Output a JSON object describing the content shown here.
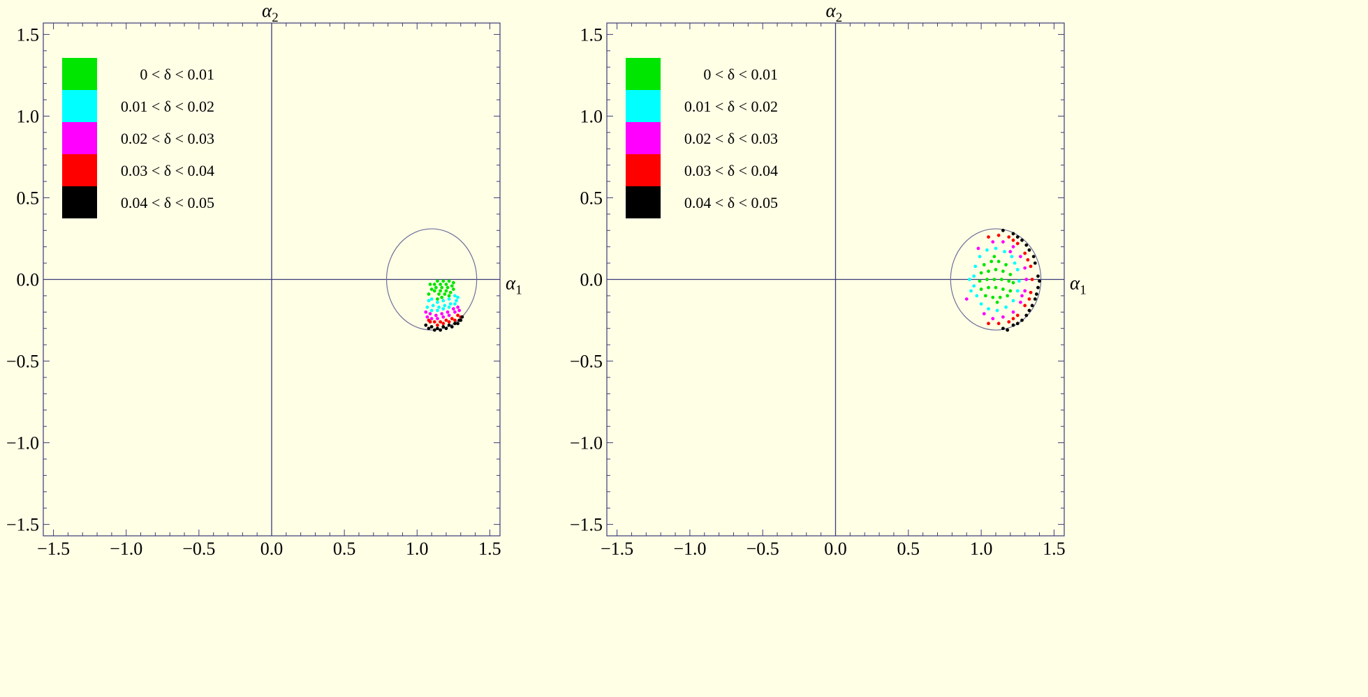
{
  "colors": {
    "background": "#ffffe6",
    "frame": "#3a3a78",
    "circle": "#6e6e9a"
  },
  "chart_data": [
    {
      "type": "scatter",
      "panel": "left",
      "xlabel": "α",
      "xlabel_sub": "1",
      "ylabel": "α",
      "ylabel_sub": "2",
      "xlim": [
        -1.57,
        1.57
      ],
      "ylim": [
        -1.57,
        1.57
      ],
      "xticks": [
        -1.5,
        -1.0,
        -0.5,
        0.0,
        0.5,
        1.0,
        1.5
      ],
      "xtick_labels": [
        "−1.5",
        "−1.0",
        "−0.5",
        "0.0",
        "0.5",
        "1.0",
        "1.5"
      ],
      "yticks": [
        1.5,
        1.0,
        0.5,
        0.0,
        -0.5,
        -1.0,
        -1.5
      ],
      "ytick_labels": [
        "1.5",
        "1.0",
        "0.5",
        "0.0",
        "−0.5",
        "−1.0",
        "−1.5"
      ],
      "legend_position": "top-left",
      "legend": [
        {
          "label": "0 < δ < 0.01",
          "color": "#00e600"
        },
        {
          "label": "0.01 < δ < 0.02",
          "color": "#00ffff"
        },
        {
          "label": "0.02 < δ < 0.03",
          "color": "#ff00ff"
        },
        {
          "label": "0.03 < δ < 0.04",
          "color": "#ff0000"
        },
        {
          "label": "0.04 < δ < 0.05",
          "color": "#000000"
        }
      ],
      "reference_circle": {
        "cx": 1.1,
        "cy": 0.0,
        "r": 0.31
      },
      "series": [
        {
          "color": "#00e600",
          "points": [
            [
              1.14,
              -0.01
            ],
            [
              1.18,
              -0.01
            ],
            [
              1.22,
              -0.01
            ],
            [
              1.25,
              -0.02
            ],
            [
              1.12,
              -0.03
            ],
            [
              1.16,
              -0.03
            ],
            [
              1.2,
              -0.03
            ],
            [
              1.24,
              -0.04
            ],
            [
              1.13,
              -0.05
            ],
            [
              1.17,
              -0.05
            ],
            [
              1.21,
              -0.05
            ],
            [
              1.25,
              -0.06
            ],
            [
              1.12,
              -0.07
            ],
            [
              1.16,
              -0.07
            ],
            [
              1.2,
              -0.07
            ],
            [
              1.23,
              -0.08
            ],
            [
              1.15,
              -0.09
            ],
            [
              1.19,
              -0.09
            ],
            [
              1.22,
              -0.1
            ],
            [
              1.17,
              -0.11
            ],
            [
              1.09,
              -0.03
            ],
            [
              1.1,
              -0.06
            ],
            [
              1.08,
              -0.09
            ],
            [
              1.14,
              -0.12
            ]
          ]
        },
        {
          "color": "#00ffff",
          "points": [
            [
              1.1,
              -0.12
            ],
            [
              1.14,
              -0.14
            ],
            [
              1.18,
              -0.13
            ],
            [
              1.22,
              -0.12
            ],
            [
              1.26,
              -0.1
            ],
            [
              1.11,
              -0.16
            ],
            [
              1.15,
              -0.17
            ],
            [
              1.19,
              -0.16
            ],
            [
              1.23,
              -0.15
            ],
            [
              1.27,
              -0.13
            ],
            [
              1.1,
              -0.19
            ],
            [
              1.14,
              -0.19
            ],
            [
              1.18,
              -0.18
            ],
            [
              1.22,
              -0.17
            ],
            [
              1.08,
              -0.13
            ],
            [
              1.07,
              -0.17
            ],
            [
              1.28,
              -0.11
            ],
            [
              1.26,
              -0.15
            ]
          ]
        },
        {
          "color": "#ff00ff",
          "points": [
            [
              1.09,
              -0.21
            ],
            [
              1.13,
              -0.22
            ],
            [
              1.17,
              -0.21
            ],
            [
              1.21,
              -0.2
            ],
            [
              1.25,
              -0.18
            ],
            [
              1.28,
              -0.17
            ],
            [
              1.1,
              -0.24
            ],
            [
              1.14,
              -0.24
            ],
            [
              1.18,
              -0.23
            ],
            [
              1.22,
              -0.22
            ],
            [
              1.26,
              -0.2
            ],
            [
              1.07,
              -0.23
            ],
            [
              1.06,
              -0.2
            ],
            [
              1.29,
              -0.19
            ]
          ]
        },
        {
          "color": "#ff0000",
          "points": [
            [
              1.12,
              -0.26
            ],
            [
              1.16,
              -0.26
            ],
            [
              1.2,
              -0.25
            ],
            [
              1.24,
              -0.24
            ],
            [
              1.28,
              -0.22
            ],
            [
              1.14,
              -0.28
            ],
            [
              1.18,
              -0.27
            ],
            [
              1.22,
              -0.26
            ],
            [
              1.26,
              -0.25
            ],
            [
              1.3,
              -0.23
            ],
            [
              1.09,
              -0.26
            ],
            [
              1.08,
              -0.25
            ]
          ]
        },
        {
          "color": "#000000",
          "points": [
            [
              1.1,
              -0.29
            ],
            [
              1.14,
              -0.3
            ],
            [
              1.18,
              -0.29
            ],
            [
              1.22,
              -0.28
            ],
            [
              1.26,
              -0.27
            ],
            [
              1.29,
              -0.25
            ],
            [
              1.31,
              -0.23
            ],
            [
              1.12,
              -0.31
            ],
            [
              1.16,
              -0.31
            ],
            [
              1.2,
              -0.3
            ],
            [
              1.24,
              -0.29
            ],
            [
              1.28,
              -0.27
            ],
            [
              1.3,
              -0.25
            ],
            [
              1.06,
              -0.28
            ],
            [
              1.08,
              -0.3
            ]
          ]
        }
      ]
    },
    {
      "type": "scatter",
      "panel": "right",
      "xlabel": "α",
      "xlabel_sub": "1",
      "ylabel": "α",
      "ylabel_sub": "2",
      "xlim": [
        -1.57,
        1.57
      ],
      "ylim": [
        -1.57,
        1.57
      ],
      "xticks": [
        -1.5,
        -1.0,
        -0.5,
        0.0,
        0.5,
        1.0,
        1.5
      ],
      "xtick_labels": [
        "−1.5",
        "−1.0",
        "−0.5",
        "0.0",
        "0.5",
        "1.0",
        "1.5"
      ],
      "yticks": [
        1.5,
        1.0,
        0.5,
        0.0,
        -0.5,
        -1.0,
        -1.5
      ],
      "ytick_labels": [
        "1.5",
        "1.0",
        "0.5",
        "0.0",
        "−0.5",
        "−1.0",
        "−1.5"
      ],
      "legend_position": "top-left",
      "legend": [
        {
          "label": "0 < δ < 0.01",
          "color": "#00e600"
        },
        {
          "label": "0.01 < δ < 0.02",
          "color": "#00ffff"
        },
        {
          "label": "0.02 < δ < 0.03",
          "color": "#ff00ff"
        },
        {
          "label": "0.03 < δ < 0.04",
          "color": "#ff0000"
        },
        {
          "label": "0.04 < δ < 0.05",
          "color": "#000000"
        }
      ],
      "reference_circle": {
        "cx": 1.1,
        "cy": 0.0,
        "r": 0.31
      },
      "series": [
        {
          "color": "#00e600",
          "points": [
            [
              1.02,
              0.09
            ],
            [
              1.07,
              0.11
            ],
            [
              1.12,
              0.11
            ],
            [
              1.17,
              0.09
            ],
            [
              1.0,
              0.04
            ],
            [
              1.05,
              0.05
            ],
            [
              1.1,
              0.06
            ],
            [
              1.15,
              0.05
            ],
            [
              1.2,
              0.03
            ],
            [
              0.99,
              -0.01
            ],
            [
              1.04,
              0.0
            ],
            [
              1.09,
              0.0
            ],
            [
              1.14,
              0.0
            ],
            [
              1.19,
              -0.01
            ],
            [
              1.22,
              -0.02
            ],
            [
              1.0,
              -0.06
            ],
            [
              1.05,
              -0.05
            ],
            [
              1.1,
              -0.05
            ],
            [
              1.15,
              -0.06
            ],
            [
              1.2,
              -0.07
            ],
            [
              1.03,
              -0.1
            ],
            [
              1.08,
              -0.11
            ],
            [
              1.13,
              -0.11
            ],
            [
              1.18,
              -0.1
            ],
            [
              1.09,
              0.14
            ],
            [
              1.11,
              -0.14
            ]
          ]
        },
        {
          "color": "#00ffff",
          "points": [
            [
              1.04,
              0.18
            ],
            [
              1.1,
              0.19
            ],
            [
              1.16,
              0.17
            ],
            [
              1.21,
              0.14
            ],
            [
              0.99,
              0.14
            ],
            [
              0.96,
              0.08
            ],
            [
              0.95,
              0.02
            ],
            [
              0.95,
              -0.04
            ],
            [
              0.97,
              -0.1
            ],
            [
              1.0,
              -0.15
            ],
            [
              1.05,
              -0.18
            ],
            [
              1.11,
              -0.19
            ],
            [
              1.17,
              -0.17
            ],
            [
              1.22,
              -0.13
            ],
            [
              1.25,
              -0.07
            ],
            [
              1.26,
              -0.01
            ],
            [
              1.25,
              0.06
            ],
            [
              1.23,
              0.1
            ],
            [
              0.92,
              0.0
            ],
            [
              0.93,
              -0.07
            ]
          ]
        },
        {
          "color": "#ff00ff",
          "points": [
            [
              1.08,
              0.23
            ],
            [
              1.15,
              0.23
            ],
            [
              1.22,
              0.2
            ],
            [
              1.27,
              0.14
            ],
            [
              1.3,
              0.07
            ],
            [
              1.31,
              0.0
            ],
            [
              1.3,
              -0.07
            ],
            [
              1.27,
              -0.14
            ],
            [
              1.22,
              -0.2
            ],
            [
              1.15,
              -0.23
            ],
            [
              1.08,
              -0.24
            ],
            [
              1.02,
              -0.21
            ],
            [
              0.98,
              0.19
            ],
            [
              0.9,
              -0.12
            ],
            [
              1.2,
              0.17
            ],
            [
              1.28,
              -0.1
            ]
          ]
        },
        {
          "color": "#ff0000",
          "points": [
            [
              1.12,
              0.27
            ],
            [
              1.19,
              0.26
            ],
            [
              1.25,
              0.22
            ],
            [
              1.3,
              0.16
            ],
            [
              1.34,
              0.08
            ],
            [
              1.35,
              0.0
            ],
            [
              1.34,
              -0.08
            ],
            [
              1.3,
              -0.16
            ],
            [
              1.25,
              -0.22
            ],
            [
              1.19,
              -0.26
            ],
            [
              1.12,
              -0.27
            ],
            [
              1.32,
              0.12
            ],
            [
              1.33,
              -0.12
            ],
            [
              1.22,
              0.24
            ],
            [
              1.22,
              -0.24
            ],
            [
              1.05,
              0.26
            ],
            [
              1.05,
              -0.27
            ]
          ]
        },
        {
          "color": "#000000",
          "points": [
            [
              1.15,
              0.3
            ],
            [
              1.22,
              0.28
            ],
            [
              1.28,
              0.24
            ],
            [
              1.33,
              0.18
            ],
            [
              1.37,
              0.1
            ],
            [
              1.39,
              0.02
            ],
            [
              1.39,
              -0.05
            ],
            [
              1.37,
              -0.12
            ],
            [
              1.33,
              -0.19
            ],
            [
              1.28,
              -0.25
            ],
            [
              1.22,
              -0.28
            ],
            [
              1.15,
              -0.3
            ],
            [
              1.36,
              0.14
            ],
            [
              1.38,
              -0.09
            ],
            [
              1.35,
              -0.16
            ],
            [
              1.31,
              0.21
            ],
            [
              1.31,
              -0.22
            ],
            [
              1.25,
              0.26
            ],
            [
              1.25,
              -0.27
            ],
            [
              1.4,
              -0.01
            ],
            [
              1.18,
              -0.31
            ]
          ]
        }
      ]
    }
  ]
}
